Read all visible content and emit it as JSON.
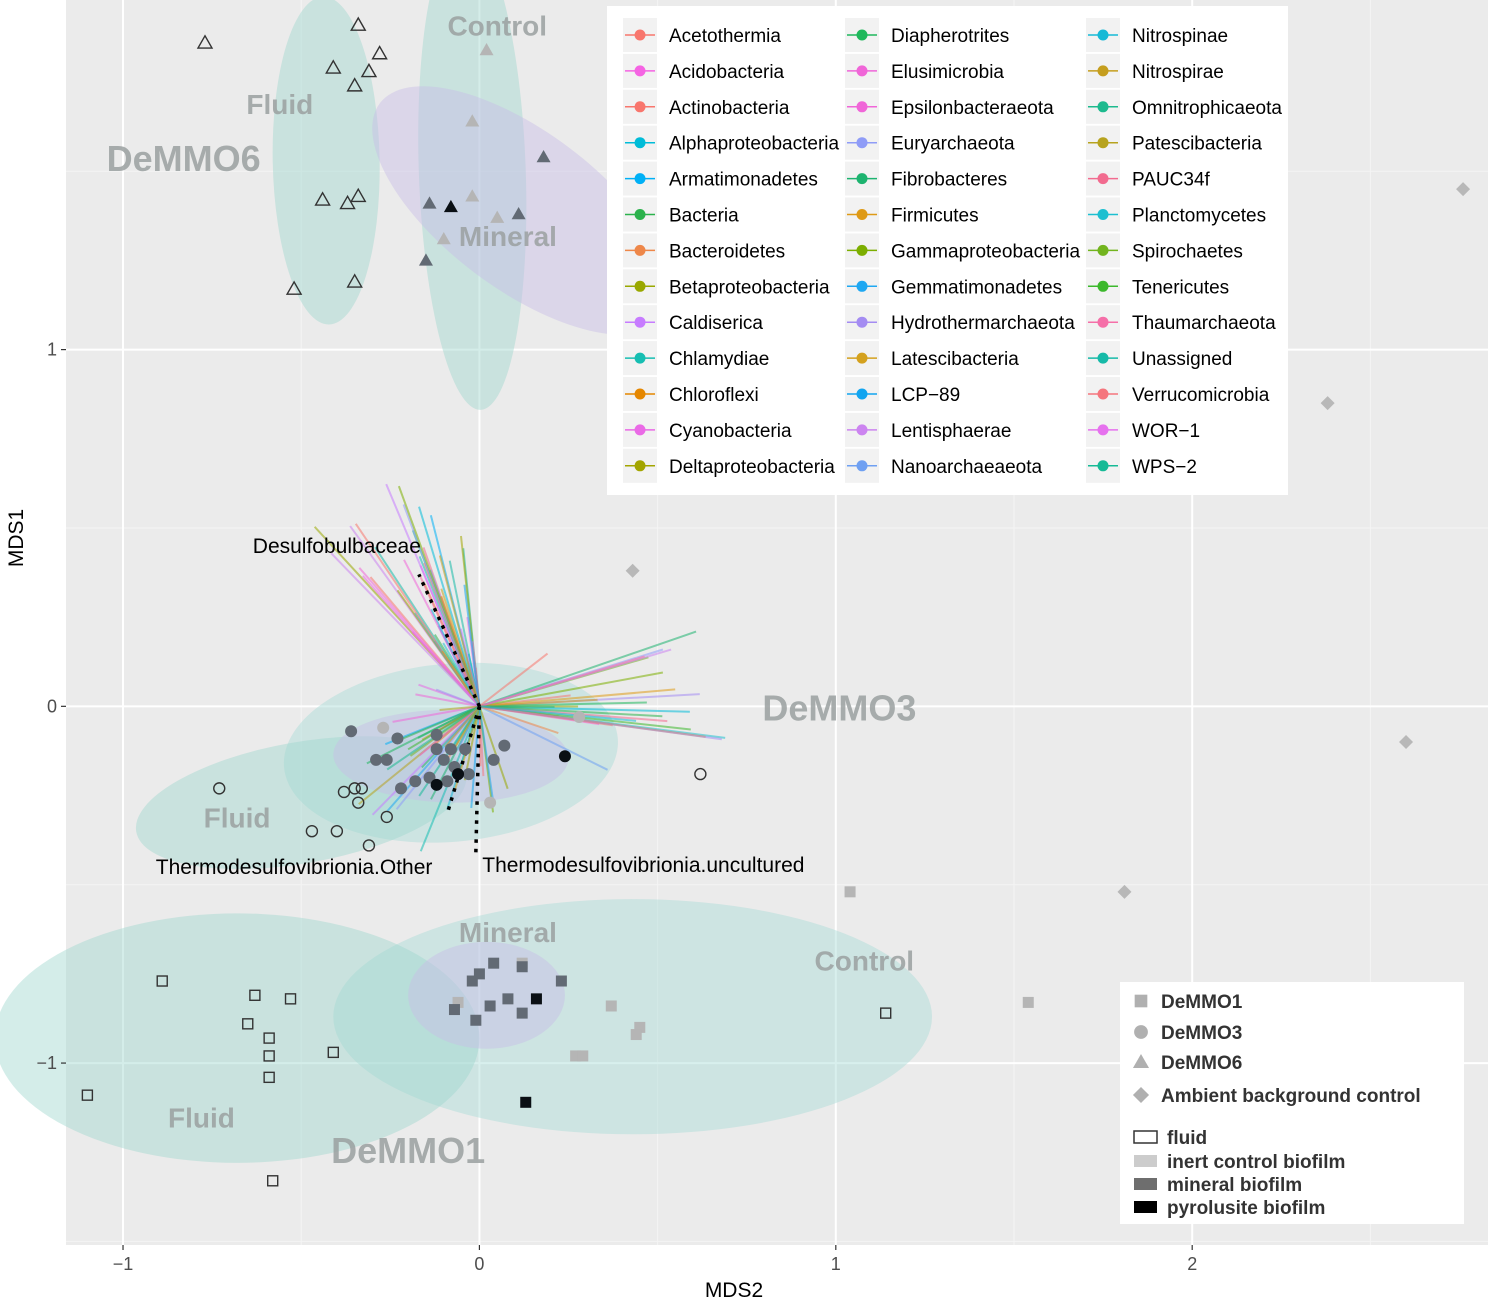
{
  "chart_data": {
    "type": "scatter",
    "title": "",
    "xlabel": "MDS2",
    "ylabel": "MDS1",
    "xlim": [
      -1.16,
      2.83
    ],
    "ylim": [
      -1.51,
      1.98
    ],
    "x_ticks": [
      {
        "v": -1,
        "label": "−1"
      },
      {
        "v": 0,
        "label": "0"
      },
      {
        "v": 1,
        "label": "1"
      },
      {
        "v": 2,
        "label": "2"
      }
    ],
    "y_ticks": [
      {
        "v": -1,
        "label": "−1"
      },
      {
        "v": 0,
        "label": "0"
      },
      {
        "v": 1,
        "label": "1"
      }
    ],
    "grid": true,
    "background": "#ebebeb",
    "ellipses": [
      {
        "name": "DeMMO6 Fluid",
        "cx": -0.43,
        "cy": 1.53,
        "rx": 0.46,
        "ry": 0.15,
        "angle": 91,
        "color": "#9fd8cf"
      },
      {
        "name": "DeMMO6 Control",
        "cx": -0.02,
        "cy": 1.5,
        "rx": 0.67,
        "ry": 0.15,
        "angle": 92,
        "color": "#9fd8cf"
      },
      {
        "name": "DeMMO6 Mineral",
        "cx": 0.12,
        "cy": 1.39,
        "rx": 0.5,
        "ry": 0.22,
        "angle": 143,
        "color": "#c8bde6"
      },
      {
        "name": "DeMMO3 Control",
        "cx": -0.08,
        "cy": -0.13,
        "rx": 0.47,
        "ry": 0.25,
        "angle": 5,
        "color": "#a9dcd8"
      },
      {
        "name": "DeMMO3 Fluid",
        "cx": -0.5,
        "cy": -0.27,
        "rx": 0.47,
        "ry": 0.17,
        "angle": 10,
        "color": "#9fd8cf"
      },
      {
        "name": "DeMMO3 Mineral",
        "cx": -0.08,
        "cy": -0.14,
        "rx": 0.33,
        "ry": 0.13,
        "angle": -1,
        "color": "#c8bde6"
      },
      {
        "name": "DeMMO1 Control",
        "cx": 0.43,
        "cy": -0.87,
        "rx": 0.84,
        "ry": 0.33,
        "angle": 0,
        "color": "#a9dcd8"
      },
      {
        "name": "DeMMO1 Fluid",
        "cx": -0.68,
        "cy": -0.93,
        "rx": 0.68,
        "ry": 0.35,
        "angle": 0,
        "color": "#9fd8cf"
      },
      {
        "name": "DeMMO1 Mineral",
        "cx": 0.02,
        "cy": -0.81,
        "rx": 0.22,
        "ry": 0.15,
        "angle": 0,
        "color": "#c8bde6"
      }
    ],
    "group_labels": [
      {
        "text": "DeMMO6",
        "x": -0.83,
        "y": 1.5,
        "big": true
      },
      {
        "text": "Control",
        "x": 0.05,
        "y": 1.88,
        "big": false
      },
      {
        "text": "Fluid",
        "x": -0.56,
        "y": 1.66,
        "big": false
      },
      {
        "text": "Mineral",
        "x": 0.08,
        "y": 1.29,
        "big": false
      },
      {
        "text": "DeMMO3",
        "x": 1.01,
        "y": -0.04,
        "big": true
      },
      {
        "text": "Fluid",
        "x": -0.68,
        "y": -0.34,
        "big": false
      },
      {
        "text": "Mineral",
        "x": 0.08,
        "y": -0.66,
        "big": false
      },
      {
        "text": "Control",
        "x": 1.08,
        "y": -0.74,
        "big": false
      },
      {
        "text": "Fluid",
        "x": -0.78,
        "y": -1.18,
        "big": false
      },
      {
        "text": "DeMMO1",
        "x": -0.2,
        "y": -1.28,
        "big": true
      }
    ],
    "annotations": [
      {
        "text": "Desulfobulbaceae",
        "x": -0.4,
        "y": 0.43
      },
      {
        "text": "Thermodesulfovibrionia.Other",
        "x": -0.52,
        "y": -0.47
      },
      {
        "text": "Thermodesulfovibrionia.uncultured",
        "x": 0.46,
        "y": -0.465
      }
    ],
    "dotted_vectors": [
      {
        "name": "Desulfobulbaceae",
        "x": -0.17,
        "y": 0.37
      },
      {
        "name": "Thermodesulfovibrionia.Other",
        "x": -0.09,
        "y": -0.3
      },
      {
        "name": "Thermodesulfovibrionia.uncultured",
        "x": -0.01,
        "y": -0.41
      }
    ],
    "vector_fan": {
      "count": 110,
      "range_x": [
        -0.42,
        0.72
      ],
      "range_y": [
        -0.42,
        0.69
      ]
    },
    "series": [
      {
        "site": "DeMMO6",
        "type": "fluid",
        "points": [
          [
            -0.77,
            1.86
          ],
          [
            -0.34,
            1.91
          ],
          [
            -0.28,
            1.83
          ],
          [
            -0.41,
            1.79
          ],
          [
            -0.31,
            1.78
          ],
          [
            -0.35,
            1.74
          ],
          [
            -0.44,
            1.42
          ],
          [
            -0.37,
            1.41
          ],
          [
            -0.34,
            1.43
          ],
          [
            -0.52,
            1.17
          ],
          [
            -0.35,
            1.19
          ]
        ]
      },
      {
        "site": "DeMMO6",
        "type": "inert control biofilm",
        "points": [
          [
            0.02,
            1.84
          ],
          [
            -0.02,
            1.64
          ],
          [
            -0.02,
            1.43
          ],
          [
            0.05,
            1.37
          ],
          [
            -0.1,
            1.31
          ]
        ]
      },
      {
        "site": "DeMMO6",
        "type": "mineral biofilm",
        "points": [
          [
            0.18,
            1.54
          ],
          [
            -0.14,
            1.41
          ],
          [
            0.11,
            1.38
          ],
          [
            -0.15,
            1.25
          ]
        ]
      },
      {
        "site": "DeMMO6",
        "type": "pyrolusite biofilm",
        "points": [
          [
            -0.08,
            1.4
          ]
        ]
      },
      {
        "site": "DeMMO3",
        "type": "fluid",
        "points": [
          [
            -0.73,
            -0.23
          ],
          [
            -0.38,
            -0.24
          ],
          [
            -0.35,
            -0.23
          ],
          [
            -0.33,
            -0.23
          ],
          [
            -0.34,
            -0.27
          ],
          [
            -0.26,
            -0.31
          ],
          [
            -0.47,
            -0.35
          ],
          [
            -0.4,
            -0.35
          ],
          [
            -0.31,
            -0.39
          ],
          [
            0.62,
            -0.19
          ]
        ]
      },
      {
        "site": "DeMMO3",
        "type": "inert control biofilm",
        "points": [
          [
            -0.27,
            -0.06
          ],
          [
            0.28,
            -0.03
          ],
          [
            0.03,
            -0.27
          ]
        ]
      },
      {
        "site": "DeMMO3",
        "type": "mineral biofilm",
        "points": [
          [
            -0.36,
            -0.07
          ],
          [
            -0.23,
            -0.09
          ],
          [
            -0.12,
            -0.08
          ],
          [
            0.07,
            -0.11
          ],
          [
            -0.29,
            -0.15
          ],
          [
            -0.26,
            -0.15
          ],
          [
            -0.12,
            -0.12
          ],
          [
            -0.08,
            -0.12
          ],
          [
            -0.04,
            -0.12
          ],
          [
            0.04,
            -0.15
          ],
          [
            -0.22,
            -0.23
          ],
          [
            -0.18,
            -0.21
          ],
          [
            -0.14,
            -0.2
          ],
          [
            -0.1,
            -0.15
          ],
          [
            -0.07,
            -0.17
          ],
          [
            -0.03,
            -0.19
          ],
          [
            -0.09,
            -0.21
          ]
        ]
      },
      {
        "site": "DeMMO3",
        "type": "pyrolusite biofilm",
        "points": [
          [
            0.24,
            -0.14
          ],
          [
            -0.06,
            -0.19
          ],
          [
            -0.12,
            -0.22
          ]
        ]
      },
      {
        "site": "DeMMO1",
        "type": "fluid",
        "points": [
          [
            -0.89,
            -0.77
          ],
          [
            -0.63,
            -0.81
          ],
          [
            -0.53,
            -0.82
          ],
          [
            -0.65,
            -0.89
          ],
          [
            -0.59,
            -0.93
          ],
          [
            -0.59,
            -0.98
          ],
          [
            -0.41,
            -0.97
          ],
          [
            -0.59,
            -1.04
          ],
          [
            -1.1,
            -1.09
          ],
          [
            -0.58,
            -1.33
          ],
          [
            1.14,
            -0.86
          ]
        ]
      },
      {
        "site": "DeMMO1",
        "type": "inert control biofilm",
        "points": [
          [
            0.12,
            -0.72
          ],
          [
            -0.06,
            -0.83
          ],
          [
            0.37,
            -0.84
          ],
          [
            0.45,
            -0.9
          ],
          [
            0.44,
            -0.92
          ],
          [
            0.27,
            -0.98
          ],
          [
            0.29,
            -0.98
          ],
          [
            1.04,
            -0.52
          ],
          [
            1.54,
            -0.83
          ]
        ]
      },
      {
        "site": "DeMMO1",
        "type": "mineral biofilm",
        "points": [
          [
            0.04,
            -0.72
          ],
          [
            0.12,
            -0.73
          ],
          [
            0.0,
            -0.75
          ],
          [
            -0.02,
            -0.77
          ],
          [
            0.23,
            -0.77
          ],
          [
            0.08,
            -0.82
          ],
          [
            0.03,
            -0.84
          ],
          [
            -0.07,
            -0.85
          ],
          [
            0.12,
            -0.86
          ],
          [
            -0.01,
            -0.88
          ]
        ]
      },
      {
        "site": "DeMMO1",
        "type": "pyrolusite biofilm",
        "points": [
          [
            0.16,
            -0.82
          ],
          [
            0.13,
            -1.11
          ]
        ]
      },
      {
        "site": "Ambient background control",
        "type": "control",
        "points": [
          [
            2.76,
            1.45
          ],
          [
            2.38,
            0.85
          ],
          [
            0.43,
            0.38
          ],
          [
            2.6,
            -0.1
          ],
          [
            1.81,
            -0.52
          ]
        ]
      }
    ],
    "phylum_legend": [
      {
        "name": "Acetothermia",
        "color": "#F8766D"
      },
      {
        "name": "Acidobacteria",
        "color": "#F564E3"
      },
      {
        "name": "Actinobacteria",
        "color": "#F8766D"
      },
      {
        "name": "Alphaproteobacteria",
        "color": "#00BCD8"
      },
      {
        "name": "Armatimonadetes",
        "color": "#00B0F6"
      },
      {
        "name": "Bacteria",
        "color": "#2BB24C"
      },
      {
        "name": "Bacteroidetes",
        "color": "#EE8749"
      },
      {
        "name": "Betaproteobacteria",
        "color": "#99A800"
      },
      {
        "name": "Caldiserica",
        "color": "#C77CFF"
      },
      {
        "name": "Chlamydiae",
        "color": "#16BEB2"
      },
      {
        "name": "Chloroflexi",
        "color": "#E58700"
      },
      {
        "name": "Cyanobacteria",
        "color": "#EA6AE6"
      },
      {
        "name": "Deltaproteobacteria",
        "color": "#A3A500"
      },
      {
        "name": "Diapherotrites",
        "color": "#1FB85C"
      },
      {
        "name": "Elusimicrobia",
        "color": "#F066D8"
      },
      {
        "name": "Epsilonbacteraeota",
        "color": "#F066D8"
      },
      {
        "name": "Euryarchaeota",
        "color": "#8F9CF7"
      },
      {
        "name": "Fibrobacteres",
        "color": "#1DB36F"
      },
      {
        "name": "Firmicutes",
        "color": "#DE9A16"
      },
      {
        "name": "Gammaproteobacteria",
        "color": "#7CAE00"
      },
      {
        "name": "Gemmatimonadetes",
        "color": "#1FA8F2"
      },
      {
        "name": "Hydrothermarchaeota",
        "color": "#A48CF2"
      },
      {
        "name": "Latescibacteria",
        "color": "#D4A11E"
      },
      {
        "name": "LCP−89",
        "color": "#12A5F0"
      },
      {
        "name": "Lentisphaerae",
        "color": "#CC84F0"
      },
      {
        "name": "Nanoarchaeaeota",
        "color": "#6FA0F2"
      },
      {
        "name": "Nitrospinae",
        "color": "#16B9D6"
      },
      {
        "name": "Nitrospirae",
        "color": "#C59E1E"
      },
      {
        "name": "Omnitrophicaeota",
        "color": "#1DBA8E"
      },
      {
        "name": "Patescibacteria",
        "color": "#B7A31E"
      },
      {
        "name": "PAUC34f",
        "color": "#F26B8F"
      },
      {
        "name": "Planctomycetes",
        "color": "#1DBFD0"
      },
      {
        "name": "Spirochaetes",
        "color": "#72B41E"
      },
      {
        "name": "Tenericutes",
        "color": "#3CB82C"
      },
      {
        "name": "Thaumarchaeota",
        "color": "#F56FA8"
      },
      {
        "name": "Unassigned",
        "color": "#16BAA8"
      },
      {
        "name": "Verrucomicrobia",
        "color": "#F5757D"
      },
      {
        "name": "WOR−1",
        "color": "#E671EE"
      },
      {
        "name": "WPS−2",
        "color": "#16BA96"
      }
    ],
    "shape_legend": [
      {
        "name": "DeMMO1",
        "shape": "square"
      },
      {
        "name": "DeMMO3",
        "shape": "circle"
      },
      {
        "name": "DeMMO6",
        "shape": "triangle"
      },
      {
        "name": "Ambient background control",
        "shape": "diamond"
      }
    ],
    "fill_legend": [
      {
        "name": "fluid",
        "fill": "none"
      },
      {
        "name": "inert control biofilm",
        "fill": "#cccccc"
      },
      {
        "name": "mineral biofilm",
        "fill": "#6e6e6e"
      },
      {
        "name": "pyrolusite biofilm",
        "fill": "#000000"
      }
    ],
    "type_colors": {
      "fluid": "none",
      "inert control biofilm": "#b5b5b5",
      "mineral biofilm": "#626a74",
      "pyrolusite biofilm": "#0a0f14",
      "control": "#b8b8b8"
    }
  }
}
